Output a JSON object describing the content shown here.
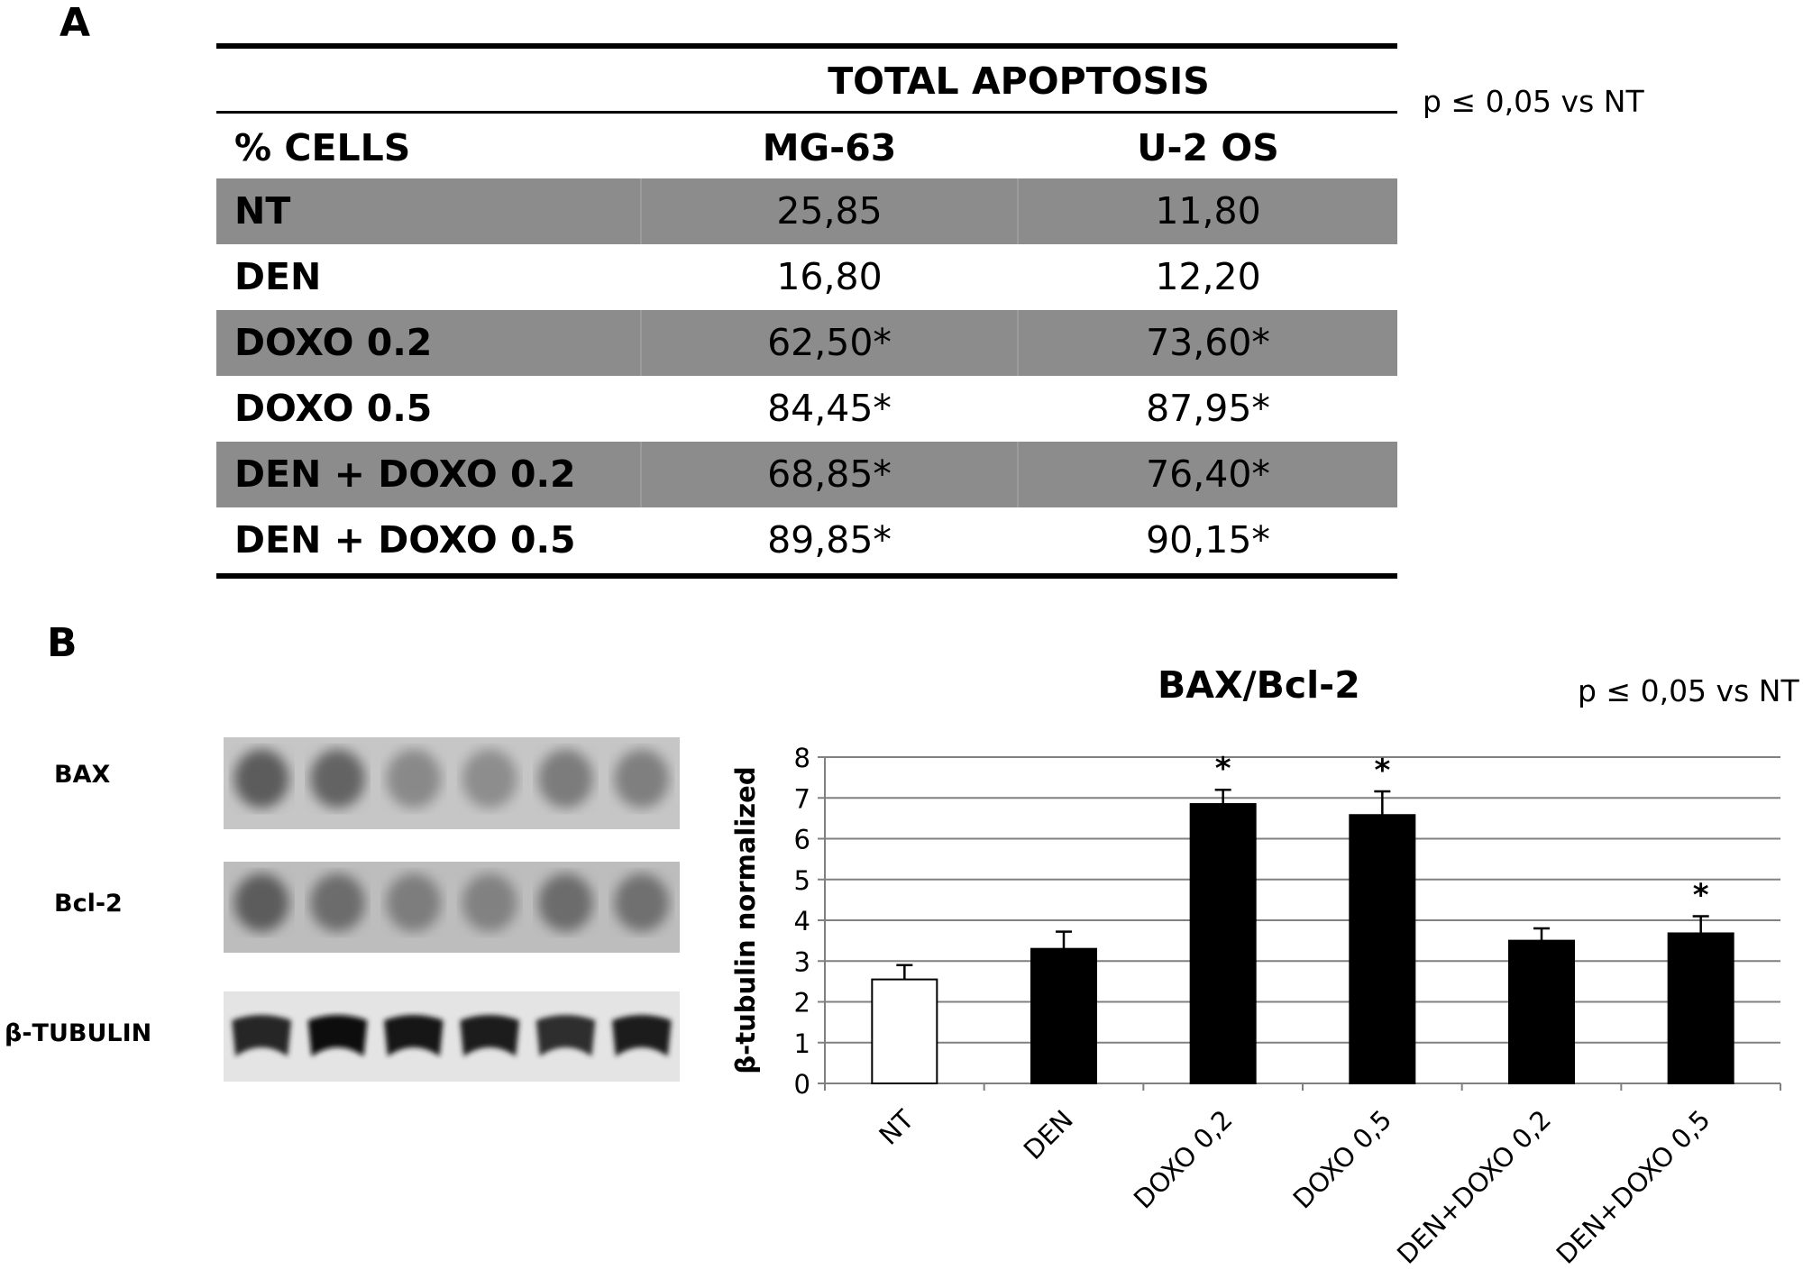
{
  "panelA": {
    "letter": "A",
    "title": "TOTAL APOPTOSIS",
    "note": "p ≤ 0,05 vs NT",
    "headers": {
      "rowlabel": "% CELLS",
      "col1": "MG-63",
      "col2": "U-2 OS"
    },
    "rows": [
      {
        "label": "NT",
        "mg63": "25,85",
        "u2os": "11,80",
        "shaded": true
      },
      {
        "label": "DEN",
        "mg63": "16,80",
        "u2os": "12,20",
        "shaded": false
      },
      {
        "label": "DOXO 0.2",
        "mg63": "62,50*",
        "u2os": "73,60*",
        "shaded": true
      },
      {
        "label": "DOXO 0.5",
        "mg63": "84,45*",
        "u2os": "87,95*",
        "shaded": false
      },
      {
        "label": "DEN + DOXO 0.2",
        "mg63": "68,85*",
        "u2os": "76,40*",
        "shaded": true
      },
      {
        "label": "DEN + DOXO 0.5",
        "mg63": "89,85*",
        "u2os": "90,15*",
        "shaded": false
      }
    ],
    "colors": {
      "shaded_row": "#8c8c8c"
    }
  },
  "panelB": {
    "letter": "B",
    "note": "p ≤ 0,05 vs NT",
    "blots": [
      {
        "label": "BAX",
        "lane_intensity": [
          0.78,
          0.72,
          0.45,
          0.42,
          0.55,
          0.52
        ]
      },
      {
        "label": "Bcl-2",
        "lane_intensity": [
          0.72,
          0.6,
          0.48,
          0.45,
          0.6,
          0.58
        ]
      },
      {
        "label": "β-TUBULIN",
        "lane_intensity": [
          0.85,
          0.95,
          0.9,
          0.88,
          0.82,
          0.88
        ]
      }
    ]
  },
  "chart_data": {
    "type": "bar",
    "title": "BAX/Bcl-2",
    "ylabel": "β-tubulin normalized",
    "xlabel": "",
    "categories": [
      "NT",
      "DEN",
      "DOXO 0,2",
      "DOXO 0,5",
      "DEN+DOXO 0,2",
      "DEN+DOXO 0,5"
    ],
    "values": [
      2.55,
      3.3,
      6.85,
      6.58,
      3.5,
      3.68
    ],
    "errors": [
      0.35,
      0.42,
      0.35,
      0.58,
      0.3,
      0.42
    ],
    "significant": [
      false,
      false,
      true,
      true,
      false,
      true
    ],
    "significance_marker": "*",
    "bar_colors": [
      "#ffffff",
      "#000000",
      "#000000",
      "#000000",
      "#000000",
      "#000000"
    ],
    "ylim": [
      0,
      8
    ],
    "yticks": [
      0,
      1,
      2,
      3,
      4,
      5,
      6,
      7,
      8
    ],
    "grid": true
  }
}
